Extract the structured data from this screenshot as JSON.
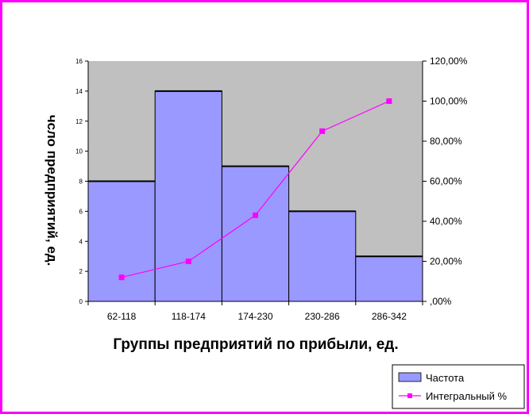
{
  "chart_data": {
    "type": "bar",
    "categories": [
      "62-118",
      "118-174",
      "174-230",
      "230-286",
      "286-342"
    ],
    "series": [
      {
        "name": "Частота",
        "type": "bar",
        "axis": "left",
        "values": [
          8,
          14,
          9,
          6,
          3
        ]
      },
      {
        "name": "Интегральный %",
        "type": "line",
        "axis": "right",
        "values": [
          12,
          20,
          43,
          85,
          100
        ]
      }
    ],
    "xlabel": "Группы предприятий по прибыли, ед.",
    "ylabel": "чсло предприятий, ед.",
    "ylim": [
      0,
      16
    ],
    "yticks": [
      "0",
      "2",
      "4",
      "6",
      "8",
      "10",
      "12",
      "14",
      "16"
    ],
    "y2lim": [
      0,
      120
    ],
    "y2ticks": [
      ",00%",
      "20,00%",
      "40,00%",
      "60,00%",
      "80,00%",
      "100,00%",
      "120,00%"
    ],
    "legend": "bottom-right",
    "colors": {
      "bar": "#9999ff",
      "line": "#ff00ff",
      "plot_bg": "#c0c0c0",
      "frame": "#ff00ff"
    }
  }
}
